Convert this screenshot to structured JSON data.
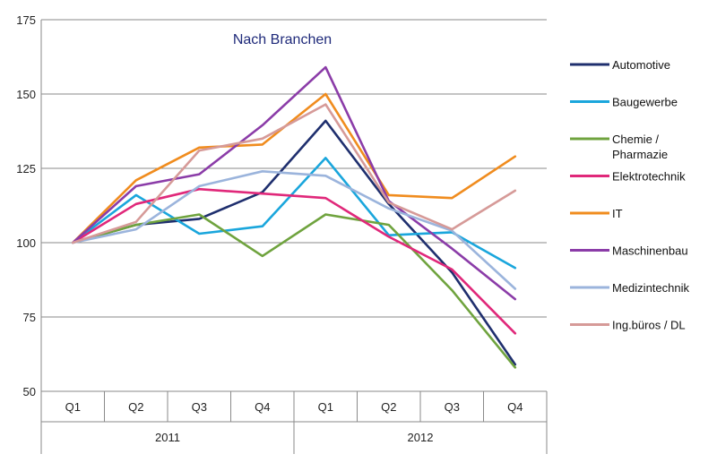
{
  "chart_data": {
    "type": "line",
    "title": "Nach Branchen",
    "xlabel": "",
    "ylabel": "",
    "ylim": [
      50,
      175
    ],
    "yticks": [
      "50",
      "75",
      "100",
      "125",
      "150",
      "175"
    ],
    "grid": true,
    "legend_position": "right",
    "categories": [
      "Q1",
      "Q2",
      "Q3",
      "Q4",
      "Q1",
      "Q2",
      "Q3",
      "Q4"
    ],
    "groups": [
      {
        "label": "2011",
        "span": 4
      },
      {
        "label": "2012",
        "span": 4
      }
    ],
    "series": [
      {
        "name": "Automotive",
        "color": "#1f2f6e",
        "values": [
          100,
          106,
          108,
          117,
          141,
          113,
          90,
          59
        ]
      },
      {
        "name": "Baugewerbe",
        "color": "#1aa6dc",
        "values": [
          100,
          116,
          103,
          105.5,
          128.5,
          102.5,
          103.5,
          91.5
        ]
      },
      {
        "name": "Chemie / Pharmazie",
        "color": "#6fa33e",
        "values": [
          100,
          106,
          109.5,
          95.5,
          109.5,
          106,
          84,
          58
        ]
      },
      {
        "name": "Elektrotechnik",
        "color": "#e0287a",
        "values": [
          100,
          113,
          118,
          116.5,
          115,
          102,
          91,
          69.5
        ]
      },
      {
        "name": "IT",
        "color": "#f08c1e",
        "values": [
          100,
          121,
          132,
          133,
          150,
          116,
          115,
          129
        ]
      },
      {
        "name": "Maschinenbau",
        "color": "#8b3ca8",
        "values": [
          100,
          119,
          123,
          139.5,
          159,
          114,
          98,
          81
        ]
      },
      {
        "name": "Medizintechnik",
        "color": "#9bb4dc",
        "values": [
          100,
          104.5,
          119,
          124,
          122.5,
          111.5,
          104,
          84.5
        ]
      },
      {
        "name": "Ing.büros / DL",
        "color": "#d69a98",
        "values": [
          100,
          107,
          131,
          135,
          146.5,
          113.5,
          104.5,
          117.5
        ]
      }
    ]
  }
}
